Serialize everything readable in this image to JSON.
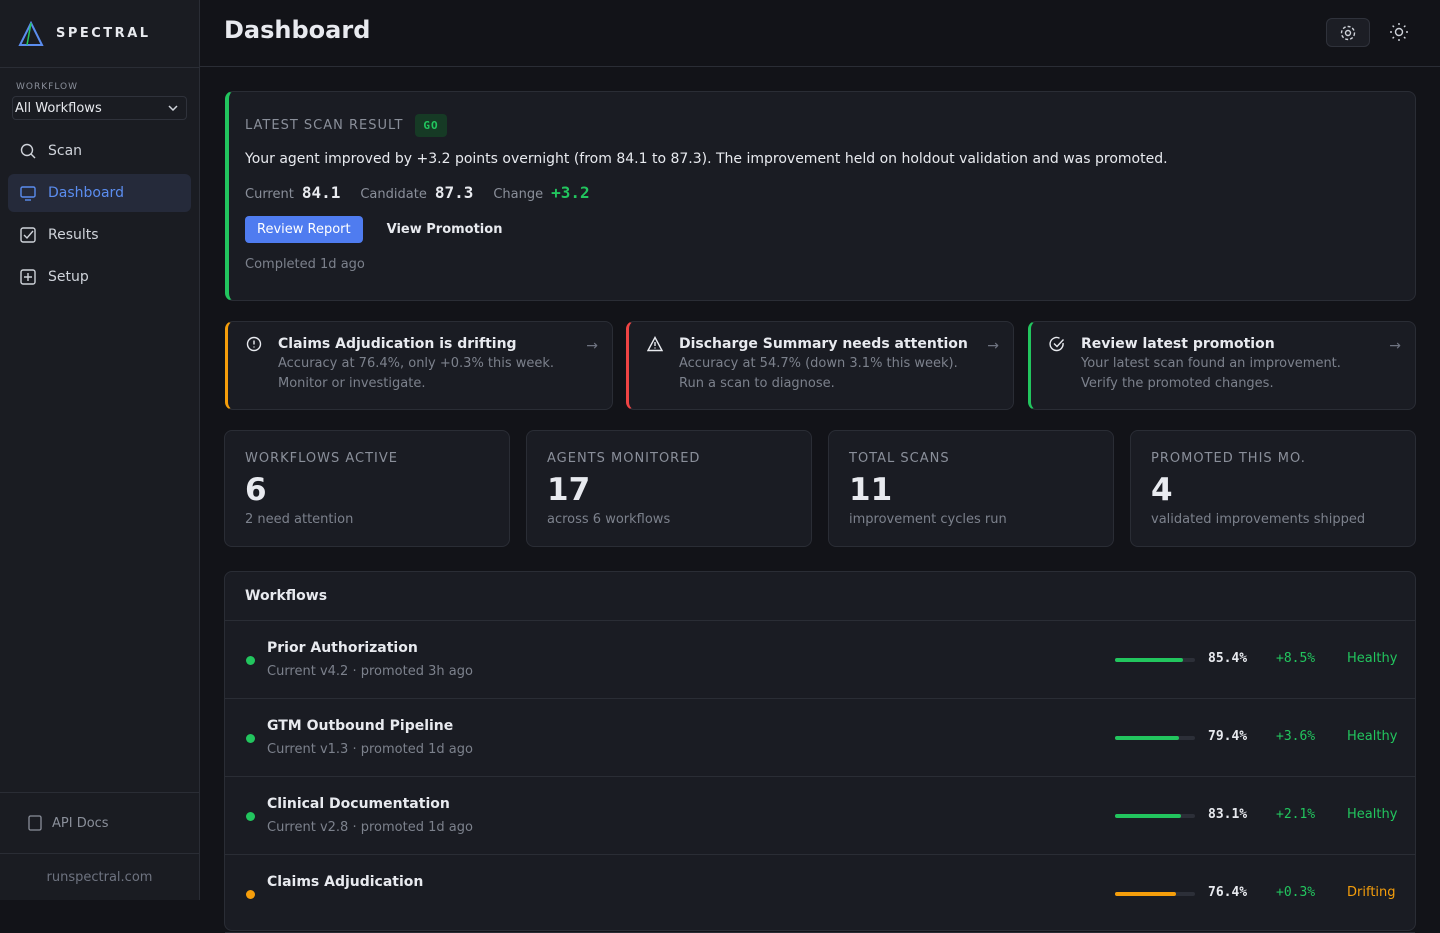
{
  "sidebar": {
    "brand": "SPECTRAL",
    "workflow_label": "WORKFLOW",
    "workflow_select": "All Workflows",
    "nav": [
      "Scan",
      "Dashboard",
      "Results",
      "Setup"
    ],
    "api_docs": "API Docs",
    "footer": "runspectral.com"
  },
  "header": {
    "title": "Dashboard"
  },
  "scan": {
    "label": "LATEST SCAN RESULT",
    "badge": "GO",
    "summary": "Your agent improved by +3.2 points overnight (from 84.1 to 87.3). The improvement held on holdout validation and was promoted.",
    "metrics": [
      {
        "label": "Current",
        "value": 84.1
      },
      {
        "label": "Candidate",
        "value": 87.3
      },
      {
        "label": "Change",
        "value": "+3.2"
      }
    ],
    "actions": [
      "Review Report",
      "View Promotion"
    ],
    "completed": "Completed 1d ago"
  },
  "alerts": [
    {
      "title": "Claims Adjudication is drifting",
      "text": "Accuracy at 76.4%, only +0.3% this week. Monitor or investigate.",
      "color": "#f59e0b"
    },
    {
      "title": "Discharge Summary needs attention",
      "text": "Accuracy at 54.7% (down 3.1% this week). Run a scan to diagnose.",
      "color": "#ef4444"
    },
    {
      "title": "Review latest promotion",
      "text": "Your latest scan found an improvement. Verify the promoted changes.",
      "color": "#22c55e"
    }
  ],
  "stats": [
    {
      "label": "WORKFLOWS ACTIVE",
      "value": 6,
      "note": "2 need attention"
    },
    {
      "label": "AGENTS MONITORED",
      "value": 17,
      "note": "across 6 workflows"
    },
    {
      "label": "TOTAL SCANS",
      "value": 11,
      "note": "improvement cycles run"
    },
    {
      "label": "PROMOTED THIS MO.",
      "value": 4,
      "note": "validated improvements shipped"
    }
  ],
  "workflows": {
    "title": "Workflows",
    "rows": [
      {
        "name": "Prior Authorization",
        "meta": "Current v4.2 · promoted 3h ago",
        "score": 85.4,
        "score_label": "85.4%",
        "change": "+8.5%",
        "status": "Healthy",
        "color": "#22c55e"
      },
      {
        "name": "GTM Outbound Pipeline",
        "meta": "Current v1.3 · promoted 1d ago",
        "score": 79.4,
        "score_label": "79.4%",
        "change": "+3.6%",
        "status": "Healthy",
        "color": "#22c55e"
      },
      {
        "name": "Clinical Documentation",
        "meta": "Current v2.8 · promoted 1d ago",
        "score": 83.1,
        "score_label": "83.1%",
        "change": "+2.1%",
        "status": "Healthy",
        "color": "#22c55e"
      },
      {
        "name": "Claims Adjudication",
        "score": 76.4,
        "score_label": "76.4%",
        "change": "+0.3%",
        "status": "Drifting",
        "color": "#f59e0b"
      }
    ]
  }
}
